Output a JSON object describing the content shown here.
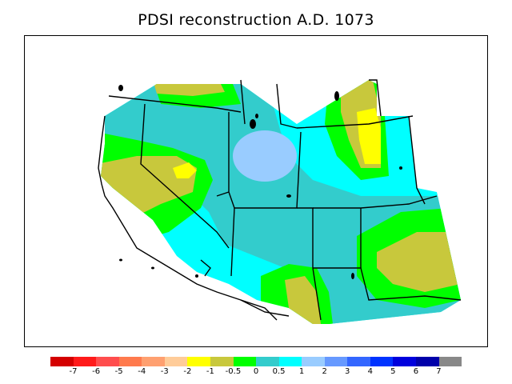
{
  "title": "PDSI reconstruction A.D. 1073",
  "legend": {
    "colors": [
      "#d40000",
      "#ff1a1a",
      "#ff4d4d",
      "#ff7a4d",
      "#ffa070",
      "#ffcc99",
      "#ffff00",
      "#c8c83c",
      "#00ff00",
      "#33cccc",
      "#00ffff",
      "#99ccff",
      "#6699ff",
      "#3366ff",
      "#0033ff",
      "#0000dd",
      "#0000aa",
      "#888888"
    ],
    "labels": [
      "-7",
      "-6",
      "-5",
      "-4",
      "-3",
      "-2",
      "-1",
      "-0.5",
      "0",
      "0.5",
      "1",
      "2",
      "3",
      "4",
      "5",
      "6",
      "7"
    ]
  },
  "map": {
    "region": "Western United States",
    "palette": {
      "very_dry": "#ffff00",
      "dry": "#c8c83c",
      "near_normal": "#00ff00",
      "slightly_wet": "#33cccc",
      "wet": "#00ffff",
      "very_wet": "#99ccff"
    }
  }
}
